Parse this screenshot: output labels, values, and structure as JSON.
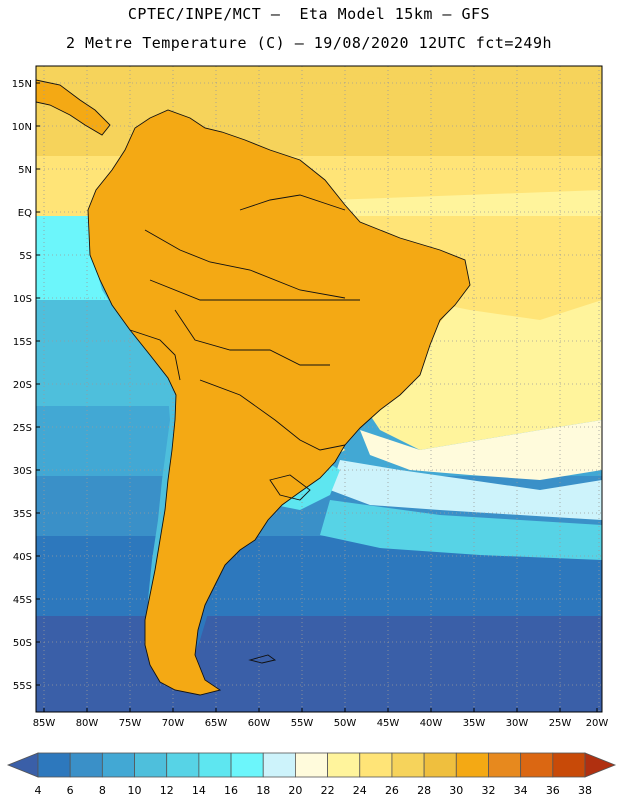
{
  "header": {
    "line1": "CPTEC/INPE/MCT –  Eta Model 15km – GFS",
    "line2": "2 Metre Temperature (C) – 19/08/2020 12UTC fct=249h"
  },
  "map": {
    "lat_labels": [
      "15N",
      "10N",
      "5N",
      "EQ",
      "5S",
      "10S",
      "15S",
      "20S",
      "25S",
      "30S",
      "35S",
      "40S",
      "45S",
      "50S",
      "55S"
    ],
    "lon_labels": [
      "85W",
      "80W",
      "75W",
      "70W",
      "65W",
      "60W",
      "55W",
      "50W",
      "45W",
      "40W",
      "35W",
      "30W",
      "25W",
      "20W"
    ]
  },
  "colorbar": {
    "labels": [
      "4",
      "6",
      "8",
      "10",
      "12",
      "14",
      "16",
      "18",
      "20",
      "22",
      "24",
      "26",
      "28",
      "30",
      "32",
      "34",
      "36",
      "38"
    ],
    "colors": [
      "#3a5fa8",
      "#2d78bd",
      "#3a90c8",
      "#42a8d4",
      "#4ebfdc",
      "#57d3e6",
      "#5ee6f0",
      "#6cf6fb",
      "#cdf3fb",
      "#fffbdc",
      "#fff49c",
      "#ffe477",
      "#f6d35b",
      "#efbf3e",
      "#f4a914",
      "#e7891e",
      "#db6712",
      "#c84a08",
      "#b03010"
    ]
  }
}
